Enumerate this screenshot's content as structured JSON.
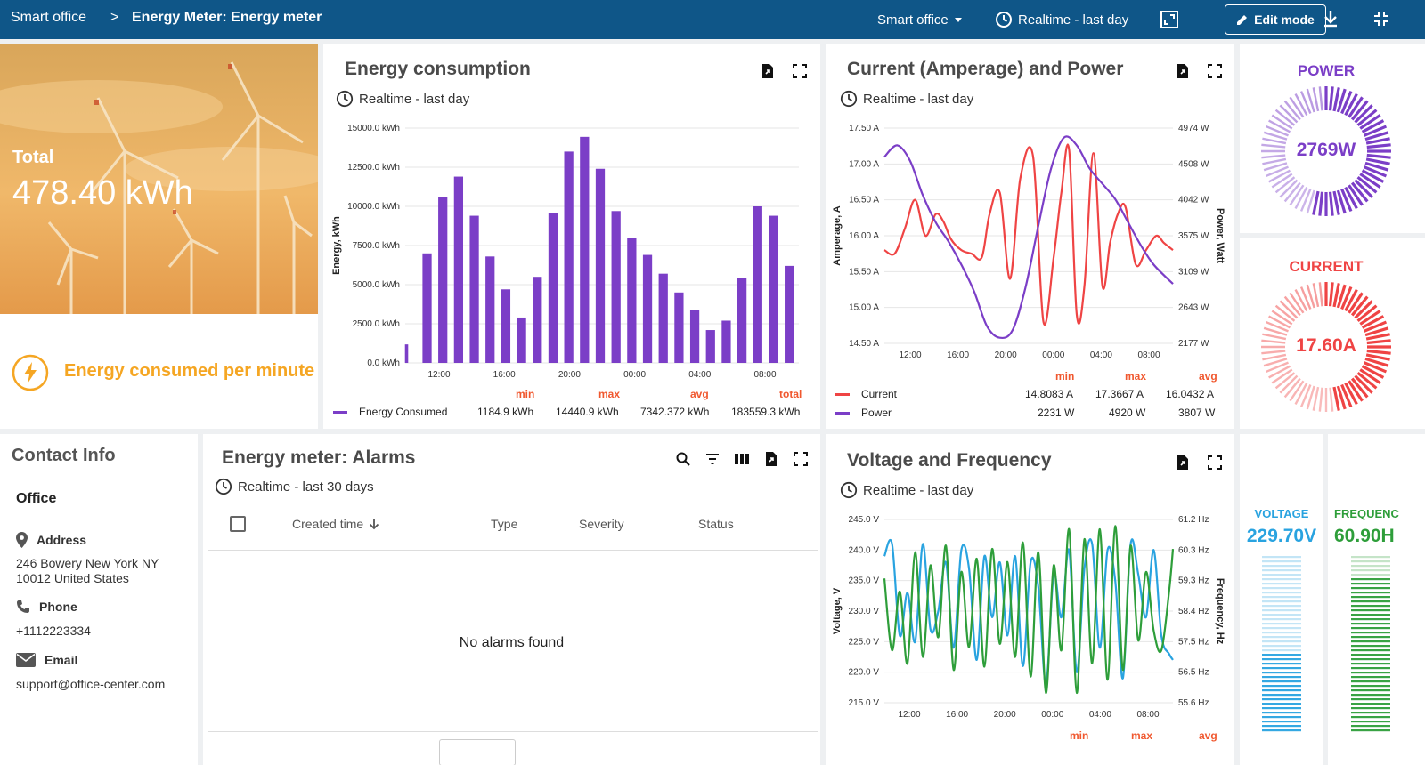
{
  "breadcrumb": {
    "root": "Smart office",
    "sep": ">",
    "current": "Energy Meter: Energy meter"
  },
  "toolbar": {
    "state": "Smart office",
    "timewindow": "Realtime - last day",
    "edit_label": "Edit mode"
  },
  "total_card": {
    "label": "Total",
    "value": "478.40 kWh",
    "caption": "Energy consumed per minute"
  },
  "energy": {
    "title": "Energy consumption",
    "time": "Realtime - last day",
    "legend": {
      "min_h": "min",
      "max_h": "max",
      "avg_h": "avg",
      "total_h": "total",
      "series": "Energy Consumed",
      "min": "1184.9 kWh",
      "max": "14440.9 kWh",
      "avg": "7342.372 kWh",
      "total": "183559.3 kWh"
    }
  },
  "current_power": {
    "title": "Current (Amperage) and Power",
    "time": "Realtime - last day",
    "legend": {
      "min_h": "min",
      "max_h": "max",
      "avg_h": "avg",
      "rows": [
        {
          "name": "Current",
          "min": "14.8083 A",
          "max": "17.3667 A",
          "avg": "16.0432 A"
        },
        {
          "name": "Power",
          "min": "2231 W",
          "max": "4920 W",
          "avg": "3807 W"
        }
      ]
    }
  },
  "voltage_freq": {
    "title": "Voltage and Frequency",
    "time": "Realtime - last day",
    "legend": {
      "min_h": "min",
      "max_h": "max",
      "avg_h": "avg"
    }
  },
  "gauges": {
    "power": {
      "label": "POWER",
      "value": "2769W",
      "level": 0.55,
      "color": "#7b3ec7"
    },
    "current": {
      "label": "CURRENT",
      "value": "17.60A",
      "level": 0.48,
      "color": "#ef4444"
    },
    "voltage": {
      "label": "VOLTAGE",
      "value": "229.70V",
      "level": 0.45,
      "color": "#29a3e0"
    },
    "frequency": {
      "label": "FREQUENC",
      "value": "60.90H",
      "level": 0.88,
      "color": "#2e9e3a"
    }
  },
  "contact": {
    "title": "Contact Info",
    "name": "Office",
    "address_label": "Address",
    "address_l1": "246 Bowery New York NY",
    "address_l2": "10012 United States",
    "phone_label": "Phone",
    "phone": "+1112223334",
    "email_label": "Email",
    "email": "support@office-center.com"
  },
  "alarms": {
    "title": "Energy meter: Alarms",
    "time": "Realtime - last 30 days",
    "columns": {
      "created": "Created time",
      "type": "Type",
      "severity": "Severity",
      "status": "Status"
    },
    "empty": "No alarms found"
  },
  "chart_data": [
    {
      "type": "bar",
      "title": "Energy consumption",
      "ylabel": "Energy, kWh",
      "xticks": [
        "12:00",
        "16:00",
        "20:00",
        "00:00",
        "04:00",
        "08:00"
      ],
      "yticks": [
        "0.0 kWh",
        "2500.0 kWh",
        "5000.0 kWh",
        "7500.0 kWh",
        "10000.0 kWh",
        "12500.0 kWh",
        "15000.0 kWh"
      ],
      "ylim": [
        0,
        15000
      ],
      "series": [
        {
          "name": "Energy Consumed",
          "color": "#7b3ec7",
          "values": [
            1184,
            7000,
            10600,
            11900,
            9400,
            6800,
            4700,
            2900,
            5500,
            9600,
            13500,
            14441,
            12400,
            9700,
            8000,
            6900,
            5700,
            4500,
            3400,
            2100,
            2700,
            5400,
            10000,
            9400,
            6200
          ]
        }
      ]
    },
    {
      "type": "line",
      "title": "Current (Amperage) and Power",
      "ylabel": "Amperage, A",
      "y2label": "Power, Watt",
      "xticks": [
        "12:00",
        "16:00",
        "20:00",
        "00:00",
        "04:00",
        "08:00"
      ],
      "yticks": [
        "14.50 A",
        "15.00 A",
        "15.50 A",
        "16.00 A",
        "16.50 A",
        "17.00 A",
        "17.50 A"
      ],
      "y2ticks": [
        "2177 W",
        "2643 W",
        "3109 W",
        "3575 W",
        "4042 W",
        "4508 W",
        "4974 W"
      ],
      "ylim": [
        14.5,
        17.5
      ],
      "y2lim": [
        2177,
        4974
      ],
      "series": [
        {
          "name": "Current",
          "color": "#ef4444",
          "axis": "left",
          "x": [
            0,
            0.8,
            1.6,
            2.4,
            3.2,
            4,
            4.6,
            5.2,
            6,
            6.8,
            7.6,
            8.2,
            9,
            9.8,
            10.6,
            11.6,
            12.4,
            13.2,
            13.8,
            14.4,
            15,
            15.6,
            16.3,
            17,
            17.6,
            18.2,
            18.8,
            19.6,
            20.4,
            21.2,
            21.8,
            22.5
          ],
          "values": [
            15.8,
            15.75,
            16.1,
            16.5,
            16.0,
            16.3,
            16.2,
            15.95,
            15.8,
            15.75,
            15.7,
            16.3,
            16.6,
            15.4,
            16.8,
            17.1,
            14.8,
            15.7,
            16.6,
            17.2,
            14.9,
            15.3,
            17.15,
            15.3,
            15.9,
            16.3,
            16.4,
            15.6,
            15.8,
            16.0,
            15.9,
            15.8
          ]
        },
        {
          "name": "Power",
          "color": "#7b3ec7",
          "axis": "right",
          "x": [
            0,
            1,
            2,
            3,
            4,
            5,
            6,
            7,
            8,
            9,
            10,
            11,
            12,
            13,
            14,
            15,
            16,
            17,
            18,
            19,
            20,
            21,
            22.5
          ],
          "values": [
            4600,
            4750,
            4550,
            4100,
            3750,
            3500,
            3200,
            2850,
            2400,
            2250,
            2350,
            2900,
            3700,
            4450,
            4850,
            4750,
            4450,
            4250,
            4050,
            3750,
            3450,
            3200,
            2950
          ]
        }
      ]
    },
    {
      "type": "line",
      "title": "Voltage and Frequency",
      "ylabel": "Voltage, V",
      "y2label": "Frequency, Hz",
      "xticks": [
        "12:00",
        "16:00",
        "20:00",
        "00:00",
        "04:00",
        "08:00"
      ],
      "yticks": [
        "215.0 V",
        "220.0 V",
        "225.0 V",
        "230.0 V",
        "235.0 V",
        "240.0 V",
        "245.0 V"
      ],
      "y2ticks": [
        "55.6 Hz",
        "56.5 Hz",
        "57.5 Hz",
        "58.4 Hz",
        "59.3 Hz",
        "60.3 Hz",
        "61.2 Hz"
      ],
      "ylim": [
        215,
        245
      ],
      "y2lim": [
        55.6,
        61.2
      ],
      "series": [
        {
          "name": "Voltage",
          "color": "#29a3e0",
          "axis": "left",
          "x": [
            0,
            0.6,
            1.2,
            1.8,
            2.4,
            3,
            3.6,
            4.2,
            4.8,
            5.4,
            6,
            6.6,
            7.2,
            7.8,
            8.4,
            9,
            9.6,
            10.2,
            10.8,
            11.4,
            12,
            12.6,
            13.2,
            13.8,
            14.4,
            15,
            15.6,
            16.2,
            16.8,
            17.4,
            18,
            18.6,
            19.2,
            19.8,
            20.4,
            21,
            21.6,
            22.2,
            22.5
          ],
          "values": [
            239,
            241,
            226,
            233,
            225,
            241,
            227,
            230,
            238,
            224,
            240,
            237,
            222,
            239,
            229,
            238,
            226,
            239,
            221,
            238,
            234,
            218,
            236,
            229,
            240,
            220,
            237,
            241,
            224,
            240,
            235,
            219,
            241,
            236,
            229,
            240,
            226,
            223,
            222
          ]
        },
        {
          "name": "Frequency",
          "color": "#2e9e3a",
          "axis": "right",
          "x": [
            0,
            0.6,
            1.2,
            1.8,
            2.4,
            3,
            3.6,
            4.2,
            4.8,
            5.4,
            6,
            6.6,
            7.2,
            7.8,
            8.4,
            9,
            9.6,
            10.2,
            10.8,
            11.4,
            12,
            12.6,
            13.2,
            13.8,
            14.4,
            15,
            15.6,
            16.2,
            16.8,
            17.4,
            18,
            18.6,
            19.2,
            19.8,
            20.4,
            21,
            21.6,
            22.2,
            22.5
          ],
          "values": [
            59.4,
            57.2,
            59.0,
            56.8,
            60.2,
            57.0,
            59.8,
            57.6,
            60.4,
            56.6,
            59.6,
            57.3,
            60.0,
            56.7,
            60.3,
            57.4,
            59.9,
            57.0,
            60.5,
            56.4,
            60.2,
            55.9,
            59.8,
            57.2,
            60.9,
            55.9,
            60.6,
            56.8,
            60.9,
            56.3,
            61.0,
            56.6,
            60.4,
            57.5,
            59.6,
            57.8,
            57.2,
            59.0,
            60.3
          ]
        }
      ]
    }
  ]
}
